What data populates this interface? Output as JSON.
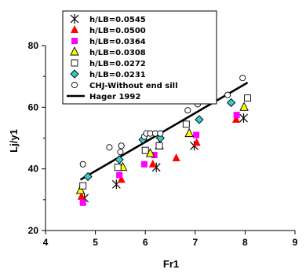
{
  "chart_data": {
    "type": "scatter",
    "title": "",
    "xlabel": "Fr1",
    "ylabel": "Lj/y1",
    "xlim": [
      4,
      9
    ],
    "ylim": [
      20,
      80
    ],
    "xticks": [
      4,
      5,
      6,
      7,
      8,
      9
    ],
    "yticks": [
      20,
      40,
      60,
      80
    ],
    "grid": false,
    "legend_position": "top-left",
    "series": [
      {
        "name": "h/LB=0.0545",
        "marker": "asterisk",
        "color": "#000000",
        "points": [
          [
            4.78,
            30.5
          ],
          [
            5.42,
            35.0
          ],
          [
            6.22,
            40.5
          ],
          [
            6.98,
            47.5
          ],
          [
            7.97,
            56.5
          ]
        ]
      },
      {
        "name": "h/LB=0.0500",
        "marker": "triangle",
        "color": "#ff0000",
        "points": [
          [
            4.72,
            31.0
          ],
          [
            5.52,
            36.5
          ],
          [
            6.15,
            41.5
          ],
          [
            6.62,
            43.5
          ],
          [
            7.03,
            48.5
          ],
          [
            7.82,
            56.0
          ]
        ]
      },
      {
        "name": "h/LB=0.0364",
        "marker": "square",
        "color": "#ff00ff",
        "points": [
          [
            4.75,
            29.0
          ],
          [
            5.48,
            38.0
          ],
          [
            5.98,
            41.5
          ],
          [
            6.18,
            44.5
          ],
          [
            7.02,
            51.0
          ],
          [
            7.83,
            57.5
          ]
        ]
      },
      {
        "name": "h/LB=0.0308",
        "marker": "triangle",
        "color": "#ffff00",
        "points": [
          [
            4.7,
            33.0
          ],
          [
            5.55,
            40.5
          ],
          [
            6.1,
            45.0
          ],
          [
            6.28,
            47.5
          ],
          [
            6.88,
            51.5
          ],
          [
            7.98,
            60.0
          ]
        ]
      },
      {
        "name": "h/LB=0.0272",
        "marker": "square",
        "color": "#ffffff",
        "points": [
          [
            4.75,
            34.5
          ],
          [
            5.45,
            40.5
          ],
          [
            6.0,
            46.0
          ],
          [
            6.28,
            47.5
          ],
          [
            6.82,
            54.5
          ],
          [
            8.05,
            63.0
          ]
        ]
      },
      {
        "name": "h/LB=0.0231",
        "marker": "diamond",
        "color": "#33cccc",
        "points": [
          [
            4.85,
            37.5
          ],
          [
            5.48,
            43.0
          ],
          [
            5.95,
            49.5
          ],
          [
            6.3,
            50.0
          ],
          [
            7.08,
            56.0
          ],
          [
            7.72,
            61.5
          ]
        ]
      },
      {
        "name": "CHJ-Without end sill",
        "marker": "circle",
        "color": "#ffffff",
        "points": [
          [
            4.75,
            41.5
          ],
          [
            5.28,
            47.0
          ],
          [
            5.52,
            47.5
          ],
          [
            5.5,
            45.5
          ],
          [
            5.98,
            50.5
          ],
          [
            6.02,
            51.5
          ],
          [
            6.1,
            51.5
          ],
          [
            6.2,
            51.5
          ],
          [
            6.3,
            51.5
          ],
          [
            6.85,
            59.0
          ],
          [
            7.05,
            61.0
          ],
          [
            7.65,
            64.0
          ],
          [
            7.95,
            69.5
          ]
        ]
      }
    ],
    "lines": [
      {
        "name": "Hager 1992",
        "color": "#000000",
        "points": [
          [
            4.7,
            36.5
          ],
          [
            8.05,
            68.0
          ]
        ]
      }
    ]
  }
}
